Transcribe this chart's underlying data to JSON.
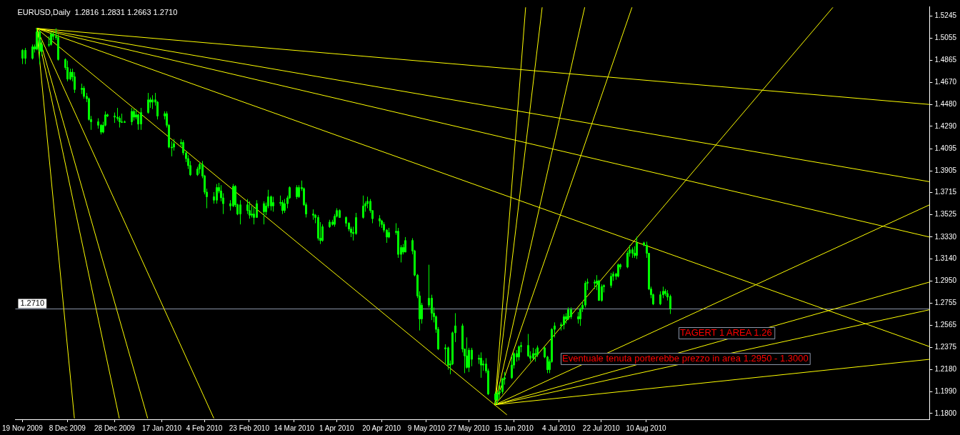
{
  "chart_data": {
    "type": "candlestick",
    "title": "EURUSD,Daily  1.2816 1.2831 1.2663 1.2710",
    "color": "#00ff00",
    "legend": false,
    "grid": false,
    "x": [
      "2009-11-19",
      "2009-11-20",
      "2009-11-23",
      "2009-11-24",
      "2009-11-25",
      "2009-11-26",
      "2009-11-27",
      "2009-11-30",
      "2009-12-01",
      "2009-12-02",
      "2009-12-03",
      "2009-12-04",
      "2009-12-07",
      "2009-12-08",
      "2009-12-09",
      "2009-12-10",
      "2009-12-11",
      "2009-12-14",
      "2009-12-15",
      "2009-12-16",
      "2009-12-17",
      "2009-12-18",
      "2009-12-21",
      "2009-12-22",
      "2009-12-23",
      "2009-12-24",
      "2009-12-25",
      "2009-12-28",
      "2009-12-29",
      "2009-12-30",
      "2009-12-31",
      "2010-01-01",
      "2010-01-04",
      "2010-01-05",
      "2010-01-06",
      "2010-01-07",
      "2010-01-08",
      "2010-01-11",
      "2010-01-12",
      "2010-01-13",
      "2010-01-14",
      "2010-01-15",
      "2010-01-18",
      "2010-01-19",
      "2010-01-20",
      "2010-01-21",
      "2010-01-22",
      "2010-01-25",
      "2010-01-26",
      "2010-01-27",
      "2010-01-28",
      "2010-01-29",
      "2010-02-01",
      "2010-02-02",
      "2010-02-03",
      "2010-02-04",
      "2010-02-05",
      "2010-02-08",
      "2010-02-09",
      "2010-02-10",
      "2010-02-11",
      "2010-02-12",
      "2010-02-15",
      "2010-02-16",
      "2010-02-17",
      "2010-02-18",
      "2010-02-19",
      "2010-02-22",
      "2010-02-23",
      "2010-02-24",
      "2010-02-25",
      "2010-02-26",
      "2010-03-01",
      "2010-03-02",
      "2010-03-03",
      "2010-03-04",
      "2010-03-05",
      "2010-03-08",
      "2010-03-09",
      "2010-03-10",
      "2010-03-11",
      "2010-03-12",
      "2010-03-15",
      "2010-03-16",
      "2010-03-17",
      "2010-03-18",
      "2010-03-19",
      "2010-03-22",
      "2010-03-23",
      "2010-03-24",
      "2010-03-25",
      "2010-03-26",
      "2010-03-29",
      "2010-03-30",
      "2010-03-31",
      "2010-04-01",
      "2010-04-02",
      "2010-04-05",
      "2010-04-06",
      "2010-04-07",
      "2010-04-08",
      "2010-04-09",
      "2010-04-12",
      "2010-04-13",
      "2010-04-14",
      "2010-04-15",
      "2010-04-16",
      "2010-04-19",
      "2010-04-20",
      "2010-04-21",
      "2010-04-22",
      "2010-04-23",
      "2010-04-26",
      "2010-04-27",
      "2010-04-28",
      "2010-04-29",
      "2010-04-30",
      "2010-05-03",
      "2010-05-04",
      "2010-05-05",
      "2010-05-06",
      "2010-05-07",
      "2010-05-10",
      "2010-05-11",
      "2010-05-12",
      "2010-05-13",
      "2010-05-14",
      "2010-05-17",
      "2010-05-18",
      "2010-05-19",
      "2010-05-20",
      "2010-05-21",
      "2010-05-24",
      "2010-05-25",
      "2010-05-26",
      "2010-05-27",
      "2010-05-28",
      "2010-05-31",
      "2010-06-01",
      "2010-06-02",
      "2010-06-03",
      "2010-06-04",
      "2010-06-07",
      "2010-06-08",
      "2010-06-09",
      "2010-06-10",
      "2010-06-11",
      "2010-06-14",
      "2010-06-15",
      "2010-06-16",
      "2010-06-17",
      "2010-06-18",
      "2010-06-21",
      "2010-06-22",
      "2010-06-23",
      "2010-06-24",
      "2010-06-25",
      "2010-06-28",
      "2010-06-29",
      "2010-06-30",
      "2010-07-01",
      "2010-07-02",
      "2010-07-05",
      "2010-07-06",
      "2010-07-07",
      "2010-07-08",
      "2010-07-09",
      "2010-07-12",
      "2010-07-13",
      "2010-07-14",
      "2010-07-15",
      "2010-07-16",
      "2010-07-19",
      "2010-07-20",
      "2010-07-21",
      "2010-07-22",
      "2010-07-23",
      "2010-07-26",
      "2010-07-27",
      "2010-07-28",
      "2010-07-29",
      "2010-07-30",
      "2010-08-02",
      "2010-08-03",
      "2010-08-04",
      "2010-08-05",
      "2010-08-06",
      "2010-08-09",
      "2010-08-10",
      "2010-08-11",
      "2010-08-12",
      "2010-08-13",
      "2010-08-16",
      "2010-08-17",
      "2010-08-18",
      "2010-08-19",
      "2010-08-20"
    ],
    "ohlc": [
      [
        1.488,
        1.496,
        1.483,
        1.495
      ],
      [
        1.495,
        1.497,
        1.483,
        1.488
      ],
      [
        1.488,
        1.5,
        1.487,
        1.498
      ],
      [
        1.498,
        1.5,
        1.493,
        1.496
      ],
      [
        1.496,
        1.5144,
        1.495,
        1.511
      ],
      [
        1.511,
        1.513,
        1.483,
        1.494
      ],
      [
        1.494,
        1.503,
        1.49,
        1.5
      ],
      [
        1.5,
        1.507,
        1.498,
        1.5
      ],
      [
        1.5,
        1.511,
        1.499,
        1.509
      ],
      [
        1.509,
        1.511,
        1.504,
        1.507
      ],
      [
        1.507,
        1.514,
        1.504,
        1.506
      ],
      [
        1.506,
        1.509,
        1.486,
        1.487
      ],
      [
        1.487,
        1.488,
        1.478,
        1.48
      ],
      [
        1.48,
        1.486,
        1.468,
        1.47
      ],
      [
        1.47,
        1.479,
        1.469,
        1.476
      ],
      [
        1.476,
        1.479,
        1.468,
        1.472
      ],
      [
        1.472,
        1.476,
        1.458,
        1.461
      ],
      [
        1.461,
        1.466,
        1.457,
        1.462
      ],
      [
        1.462,
        1.464,
        1.453,
        1.455
      ],
      [
        1.455,
        1.458,
        1.45,
        1.453
      ],
      [
        1.453,
        1.454,
        1.434,
        1.435
      ],
      [
        1.435,
        1.438,
        1.426,
        1.433
      ],
      [
        1.433,
        1.436,
        1.427,
        1.43
      ],
      [
        1.43,
        1.431,
        1.422,
        1.424
      ],
      [
        1.424,
        1.433,
        1.423,
        1.43
      ],
      [
        1.43,
        1.442,
        1.429,
        1.439
      ],
      [
        1.439,
        1.44,
        1.437,
        1.438
      ],
      [
        1.438,
        1.441,
        1.432,
        1.437
      ],
      [
        1.437,
        1.445,
        1.434,
        1.436
      ],
      [
        1.436,
        1.438,
        1.428,
        1.433
      ],
      [
        1.433,
        1.44,
        1.432,
        1.433
      ],
      [
        1.433,
        1.434,
        1.432,
        1.433
      ],
      [
        1.433,
        1.445,
        1.43,
        1.442
      ],
      [
        1.442,
        1.444,
        1.434,
        1.437
      ],
      [
        1.437,
        1.444,
        1.435,
        1.439
      ],
      [
        1.439,
        1.44,
        1.426,
        1.431
      ],
      [
        1.431,
        1.445,
        1.426,
        1.441
      ],
      [
        1.441,
        1.458,
        1.44,
        1.452
      ],
      [
        1.452,
        1.454,
        1.445,
        1.45
      ],
      [
        1.45,
        1.456,
        1.444,
        1.452
      ],
      [
        1.452,
        1.458,
        1.447,
        1.45
      ],
      [
        1.45,
        1.451,
        1.435,
        1.438
      ],
      [
        1.438,
        1.442,
        1.435,
        1.44
      ],
      [
        1.44,
        1.442,
        1.428,
        1.43
      ],
      [
        1.43,
        1.431,
        1.41,
        1.411
      ],
      [
        1.411,
        1.416,
        1.403,
        1.411
      ],
      [
        1.411,
        1.418,
        1.408,
        1.414
      ],
      [
        1.414,
        1.418,
        1.411,
        1.415
      ],
      [
        1.415,
        1.417,
        1.404,
        1.406
      ],
      [
        1.406,
        1.408,
        1.398,
        1.401
      ],
      [
        1.401,
        1.404,
        1.392,
        1.395
      ],
      [
        1.395,
        1.399,
        1.386,
        1.387
      ],
      [
        1.387,
        1.394,
        1.386,
        1.392
      ],
      [
        1.392,
        1.398,
        1.388,
        1.396
      ],
      [
        1.396,
        1.399,
        1.384,
        1.386
      ],
      [
        1.386,
        1.387,
        1.37,
        1.372
      ],
      [
        1.372,
        1.375,
        1.358,
        1.368
      ],
      [
        1.368,
        1.372,
        1.362,
        1.365
      ],
      [
        1.365,
        1.379,
        1.362,
        1.376
      ],
      [
        1.376,
        1.38,
        1.371,
        1.373
      ],
      [
        1.373,
        1.378,
        1.364,
        1.367
      ],
      [
        1.367,
        1.371,
        1.353,
        1.362
      ],
      [
        1.362,
        1.365,
        1.356,
        1.36
      ],
      [
        1.36,
        1.379,
        1.359,
        1.377
      ],
      [
        1.377,
        1.378,
        1.359,
        1.361
      ],
      [
        1.361,
        1.362,
        1.352,
        1.353
      ],
      [
        1.353,
        1.365,
        1.344,
        1.361
      ],
      [
        1.361,
        1.366,
        1.353,
        1.356
      ],
      [
        1.356,
        1.364,
        1.349,
        1.352
      ],
      [
        1.352,
        1.36,
        1.35,
        1.353
      ],
      [
        1.353,
        1.359,
        1.344,
        1.35
      ],
      [
        1.35,
        1.365,
        1.35,
        1.362
      ],
      [
        1.362,
        1.364,
        1.344,
        1.355
      ],
      [
        1.355,
        1.363,
        1.352,
        1.36
      ],
      [
        1.36,
        1.374,
        1.358,
        1.368
      ],
      [
        1.368,
        1.369,
        1.356,
        1.36
      ],
      [
        1.36,
        1.368,
        1.355,
        1.363
      ],
      [
        1.363,
        1.369,
        1.36,
        1.363
      ],
      [
        1.363,
        1.365,
        1.353,
        1.356
      ],
      [
        1.356,
        1.366,
        1.354,
        1.362
      ],
      [
        1.362,
        1.369,
        1.358,
        1.367
      ],
      [
        1.367,
        1.377,
        1.366,
        1.376
      ],
      [
        1.376,
        1.378,
        1.366,
        1.368
      ],
      [
        1.368,
        1.378,
        1.367,
        1.376
      ],
      [
        1.376,
        1.382,
        1.373,
        1.375
      ],
      [
        1.375,
        1.376,
        1.36,
        1.361
      ],
      [
        1.361,
        1.363,
        1.35,
        1.353
      ],
      [
        1.353,
        1.357,
        1.348,
        1.352
      ],
      [
        1.352,
        1.353,
        1.345,
        1.35
      ],
      [
        1.35,
        1.352,
        1.33,
        1.332
      ],
      [
        1.332,
        1.346,
        1.327,
        1.33
      ],
      [
        1.33,
        1.344,
        1.329,
        1.342
      ],
      [
        1.342,
        1.348,
        1.341,
        1.346
      ],
      [
        1.346,
        1.348,
        1.343,
        1.344
      ],
      [
        1.344,
        1.353,
        1.342,
        1.351
      ],
      [
        1.351,
        1.358,
        1.35,
        1.356
      ],
      [
        1.356,
        1.357,
        1.35,
        1.35
      ],
      [
        1.35,
        1.351,
        1.342,
        1.345
      ],
      [
        1.345,
        1.346,
        1.338,
        1.34
      ],
      [
        1.34,
        1.342,
        1.333,
        1.337
      ],
      [
        1.337,
        1.342,
        1.33,
        1.336
      ],
      [
        1.336,
        1.354,
        1.335,
        1.35
      ],
      [
        1.35,
        1.369,
        1.349,
        1.36
      ],
      [
        1.36,
        1.364,
        1.355,
        1.362
      ],
      [
        1.362,
        1.368,
        1.358,
        1.364
      ],
      [
        1.364,
        1.366,
        1.354,
        1.356
      ],
      [
        1.356,
        1.356,
        1.345,
        1.349
      ],
      [
        1.349,
        1.352,
        1.342,
        1.347
      ],
      [
        1.347,
        1.348,
        1.341,
        1.344
      ],
      [
        1.344,
        1.346,
        1.337,
        1.339
      ],
      [
        1.339,
        1.34,
        1.328,
        1.333
      ],
      [
        1.333,
        1.341,
        1.332,
        1.337
      ],
      [
        1.337,
        1.345,
        1.335,
        1.338
      ],
      [
        1.338,
        1.341,
        1.315,
        1.318
      ],
      [
        1.318,
        1.326,
        1.311,
        1.324
      ],
      [
        1.324,
        1.327,
        1.318,
        1.32
      ],
      [
        1.32,
        1.333,
        1.32,
        1.33
      ],
      [
        1.33,
        1.332,
        1.318,
        1.321
      ],
      [
        1.321,
        1.322,
        1.299,
        1.3
      ],
      [
        1.3,
        1.301,
        1.28,
        1.282
      ],
      [
        1.282,
        1.286,
        1.252,
        1.262
      ],
      [
        1.262,
        1.276,
        1.258,
        1.274
      ],
      [
        1.274,
        1.309,
        1.272,
        1.28
      ],
      [
        1.28,
        1.283,
        1.261,
        1.267
      ],
      [
        1.267,
        1.272,
        1.259,
        1.264
      ],
      [
        1.264,
        1.265,
        1.25,
        1.253
      ],
      [
        1.253,
        1.255,
        1.235,
        1.236
      ],
      [
        1.236,
        1.24,
        1.223,
        1.237
      ],
      [
        1.237,
        1.238,
        1.218,
        1.222
      ],
      [
        1.222,
        1.226,
        1.214,
        1.223
      ],
      [
        1.223,
        1.251,
        1.222,
        1.25
      ],
      [
        1.25,
        1.267,
        1.242,
        1.256
      ],
      [
        1.256,
        1.258,
        1.233,
        1.236
      ],
      [
        1.236,
        1.236,
        1.215,
        1.23
      ],
      [
        1.23,
        1.246,
        1.219,
        1.22
      ],
      [
        1.22,
        1.237,
        1.216,
        1.235
      ],
      [
        1.235,
        1.237,
        1.221,
        1.227
      ],
      [
        1.227,
        1.231,
        1.223,
        1.228
      ],
      [
        1.228,
        1.233,
        1.211,
        1.222
      ],
      [
        1.222,
        1.226,
        1.217,
        1.223
      ],
      [
        1.223,
        1.228,
        1.215,
        1.217
      ],
      [
        1.217,
        1.219,
        1.196,
        1.197
      ],
      [
        1.197,
        1.199,
        1.1876,
        1.192
      ],
      [
        1.192,
        1.2,
        1.188,
        1.198
      ],
      [
        1.198,
        1.206,
        1.193,
        1.199
      ],
      [
        1.199,
        1.211,
        1.197,
        1.21
      ],
      [
        1.21,
        1.216,
        1.205,
        1.211
      ],
      [
        1.211,
        1.23,
        1.21,
        1.222
      ],
      [
        1.222,
        1.233,
        1.219,
        1.232
      ],
      [
        1.232,
        1.235,
        1.225,
        1.229
      ],
      [
        1.229,
        1.239,
        1.226,
        1.238
      ],
      [
        1.238,
        1.242,
        1.233,
        1.239
      ],
      [
        1.239,
        1.249,
        1.229,
        1.23
      ],
      [
        1.23,
        1.234,
        1.225,
        1.228
      ],
      [
        1.228,
        1.237,
        1.227,
        1.232
      ],
      [
        1.232,
        1.236,
        1.225,
        1.231
      ],
      [
        1.231,
        1.239,
        1.229,
        1.237
      ],
      [
        1.237,
        1.238,
        1.228,
        1.229
      ],
      [
        1.229,
        1.23,
        1.215,
        1.218
      ],
      [
        1.218,
        1.227,
        1.215,
        1.225
      ],
      [
        1.225,
        1.254,
        1.224,
        1.253
      ],
      [
        1.253,
        1.259,
        1.246,
        1.256
      ],
      [
        1.256,
        1.259,
        1.252,
        1.257
      ],
      [
        1.257,
        1.266,
        1.253,
        1.264
      ],
      [
        1.264,
        1.267,
        1.258,
        1.262
      ],
      [
        1.262,
        1.272,
        1.261,
        1.27
      ],
      [
        1.27,
        1.272,
        1.262,
        1.264
      ],
      [
        1.264,
        1.268,
        1.258,
        1.262
      ],
      [
        1.262,
        1.272,
        1.256,
        1.271
      ],
      [
        1.271,
        1.277,
        1.268,
        1.274
      ],
      [
        1.274,
        1.295,
        1.272,
        1.293
      ],
      [
        1.293,
        1.297,
        1.287,
        1.294
      ],
      [
        1.294,
        1.296,
        1.288,
        1.293
      ],
      [
        1.293,
        1.3,
        1.287,
        1.295
      ],
      [
        1.295,
        1.296,
        1.278,
        1.278
      ],
      [
        1.278,
        1.292,
        1.277,
        1.29
      ],
      [
        1.29,
        1.292,
        1.285,
        1.291
      ],
      [
        1.291,
        1.302,
        1.289,
        1.299
      ],
      [
        1.299,
        1.303,
        1.295,
        1.301
      ],
      [
        1.301,
        1.302,
        1.296,
        1.299
      ],
      [
        1.299,
        1.31,
        1.298,
        1.309
      ],
      [
        1.309,
        1.31,
        1.305,
        1.307
      ],
      [
        1.307,
        1.321,
        1.306,
        1.319
      ],
      [
        1.319,
        1.326,
        1.316,
        1.322
      ],
      [
        1.322,
        1.324,
        1.315,
        1.319
      ],
      [
        1.319,
        1.325,
        1.315,
        1.317
      ],
      [
        1.317,
        1.3333,
        1.314,
        1.328
      ],
      [
        1.328,
        1.329,
        1.325,
        1.326
      ],
      [
        1.326,
        1.329,
        1.315,
        1.319
      ],
      [
        1.319,
        1.319,
        1.287,
        1.288
      ],
      [
        1.288,
        1.29,
        1.28,
        1.283
      ],
      [
        1.283,
        1.284,
        1.274,
        1.275
      ],
      [
        1.275,
        1.286,
        1.274,
        1.283
      ],
      [
        1.283,
        1.29,
        1.28,
        1.286
      ],
      [
        1.286,
        1.288,
        1.282,
        1.284
      ],
      [
        1.284,
        1.287,
        1.278,
        1.281
      ],
      [
        1.2816,
        1.2831,
        1.2663,
        1.271
      ]
    ],
    "series": [
      {
        "type": "line",
        "color": "#ffff00",
        "x": [
          "2009-11-25",
          "2010-12-08"
        ],
        "values": [
          1.514,
          1.448
        ]
      },
      {
        "type": "line",
        "color": "#ffff00",
        "x": [
          "2009-11-25",
          "2010-12-08"
        ],
        "values": [
          1.514,
          1.381
        ]
      },
      {
        "type": "line",
        "color": "#ffff00",
        "x": [
          "2009-11-25",
          "2010-12-08"
        ],
        "values": [
          1.514,
          1.333
        ]
      },
      {
        "type": "line",
        "color": "#ffff00",
        "x": [
          "2009-11-25",
          "2010-12-08"
        ],
        "values": [
          1.514,
          1.238
        ]
      },
      {
        "type": "line",
        "color": "#ffff00",
        "x": [
          "2009-11-25",
          "2010-06-12"
        ],
        "values": [
          1.514,
          1.179
        ]
      },
      {
        "type": "line",
        "color": "#ffff00",
        "x": [
          "2009-11-25",
          "2010-02-08"
        ],
        "values": [
          1.514,
          1.176
        ]
      },
      {
        "type": "line",
        "color": "#ffff00",
        "x": [
          "2009-11-25",
          "2010-01-11"
        ],
        "values": [
          1.514,
          1.176
        ]
      },
      {
        "type": "line",
        "color": "#ffff00",
        "x": [
          "2009-11-25",
          "2009-12-30"
        ],
        "values": [
          1.514,
          1.176
        ]
      },
      {
        "type": "line",
        "color": "#ffff00",
        "x": [
          "2009-11-25",
          "2009-12-11"
        ],
        "values": [
          1.514,
          1.176
        ]
      },
      {
        "type": "line",
        "color": "#ffff00",
        "x": [
          "2010-06-07",
          "2010-12-08"
        ],
        "values": [
          1.1876,
          1.361
        ]
      },
      {
        "type": "line",
        "color": "#ffff00",
        "x": [
          "2010-06-07",
          "2010-12-08"
        ],
        "values": [
          1.1876,
          1.294
        ]
      },
      {
        "type": "line",
        "color": "#ffff00",
        "x": [
          "2010-06-07",
          "2010-12-08"
        ],
        "values": [
          1.1876,
          1.27
        ]
      },
      {
        "type": "line",
        "color": "#ffff00",
        "x": [
          "2010-06-07",
          "2010-12-08"
        ],
        "values": [
          1.1876,
          1.227
        ]
      },
      {
        "type": "line",
        "color": "#ffff00",
        "x": [
          "2010-06-07",
          "2010-10-28"
        ],
        "values": [
          1.1876,
          1.532
        ]
      },
      {
        "type": "line",
        "color": "#ffff00",
        "x": [
          "2010-06-07",
          "2010-08-04"
        ],
        "values": [
          1.1876,
          1.532
        ]
      },
      {
        "type": "line",
        "color": "#ffff00",
        "x": [
          "2010-06-07",
          "2010-07-15"
        ],
        "values": [
          1.1876,
          1.532
        ]
      },
      {
        "type": "line",
        "color": "#ffff00",
        "x": [
          "2010-06-07",
          "2010-06-27"
        ],
        "values": [
          1.1876,
          1.532
        ]
      },
      {
        "type": "line",
        "color": "#ffff00",
        "x": [
          "2010-06-07",
          "2010-06-20"
        ],
        "values": [
          1.1876,
          1.532
        ]
      }
    ],
    "ref_lines": [
      {
        "axis": "y",
        "value": 1.271,
        "label": "1.2710",
        "color": "#8a94a8"
      }
    ],
    "annotations": [
      "TAGERT 1 AREA 1.26",
      "Eventuale tenuta porterebbe prezzo in area 1.2950 - 1.3000"
    ],
    "xlim": [
      "2009-11-16",
      "2010-12-08"
    ],
    "xticks": [
      {
        "value": "2009-11-19",
        "label": "19 Nov 2009"
      },
      {
        "value": "2009-12-08",
        "label": "8 Dec 2009"
      },
      {
        "value": "2009-12-28",
        "label": "28 Dec 2009"
      },
      {
        "value": "2010-01-17",
        "label": "17 Jan 2010"
      },
      {
        "value": "2010-02-04",
        "label": "4 Feb 2010"
      },
      {
        "value": "2010-02-23",
        "label": "23 Feb 2010"
      },
      {
        "value": "2010-03-14",
        "label": "14 Mar 2010"
      },
      {
        "value": "2010-04-01",
        "label": "1 Apr 2010"
      },
      {
        "value": "2010-04-20",
        "label": "20 Apr 2010"
      },
      {
        "value": "2010-05-09",
        "label": "9 May 2010"
      },
      {
        "value": "2010-05-27",
        "label": "27 May 2010"
      },
      {
        "value": "2010-06-15",
        "label": "15 Jun 2010"
      },
      {
        "value": "2010-07-04",
        "label": "4 Jul 2010"
      },
      {
        "value": "2010-07-22",
        "label": "22 Jul 2010"
      },
      {
        "value": "2010-08-10",
        "label": "10 Aug 2010"
      }
    ],
    "ylim": [
      1.175,
      1.533
    ],
    "yticks": [
      1.5245,
      1.5055,
      1.4865,
      {
        "value": 1.467,
        "label": "1.4670"
      },
      {
        "value": 1.448,
        "label": "1.4480"
      },
      {
        "value": 1.429,
        "label": "1.4290"
      },
      1.4095,
      1.3905,
      1.3715,
      1.3525,
      {
        "value": 1.333,
        "label": "1.3330"
      },
      {
        "value": 1.314,
        "label": "1.3140"
      },
      {
        "value": 1.295,
        "label": "1.2950"
      },
      1.2755,
      1.2565,
      1.2375,
      {
        "value": 1.218,
        "label": "1.2180"
      },
      {
        "value": 1.199,
        "label": "1.1990"
      },
      {
        "value": 1.18,
        "label": "1.1800"
      }
    ]
  }
}
